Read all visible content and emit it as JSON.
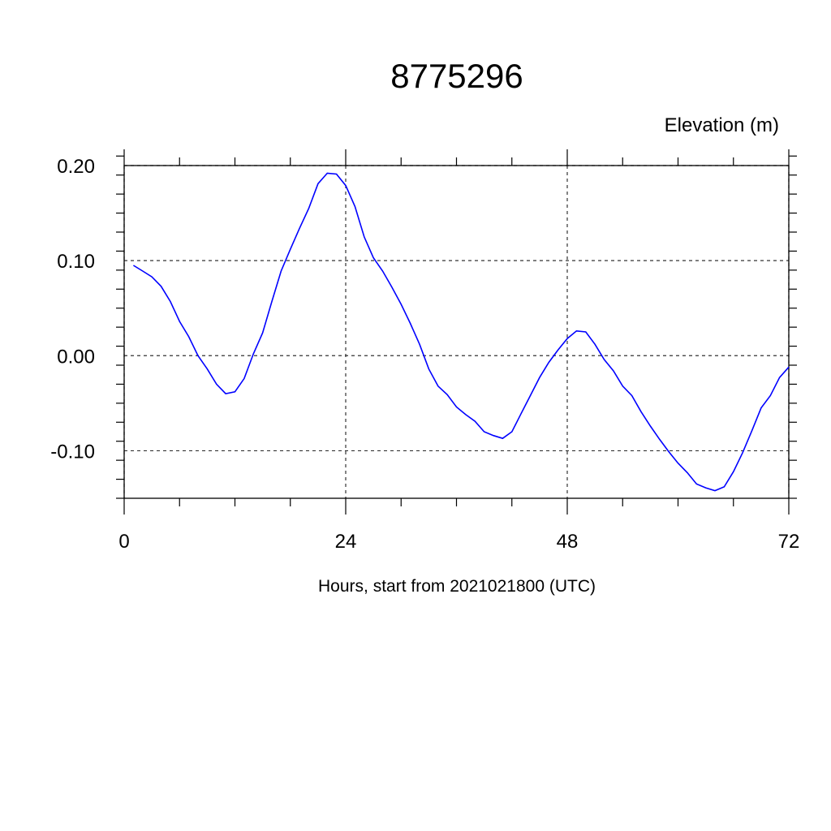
{
  "chart_data": {
    "type": "line",
    "title": "8775296",
    "ylabel": "Elevation (m)",
    "xlabel": "Hours, start from 2021021800 (UTC)",
    "xlim": [
      0,
      72
    ],
    "ylim": [
      -0.15,
      0.2
    ],
    "x_ticks": [
      0,
      24,
      48,
      72
    ],
    "x_tick_labels": [
      "0",
      "24",
      "48",
      "72"
    ],
    "x_minor_step": 6,
    "y_ticks": [
      -0.1,
      0.0,
      0.1,
      0.2
    ],
    "y_tick_labels": [
      "-0.10",
      "0.00",
      "0.10",
      "0.20"
    ],
    "y_minor_step": 0.02,
    "grid": true,
    "line_color": "#0000ff",
    "series": [
      {
        "x": [
          1,
          2,
          3,
          4,
          5,
          6,
          7,
          8,
          9,
          10,
          11,
          12,
          13,
          14,
          15,
          16,
          17,
          18,
          19,
          20,
          21,
          22,
          23,
          24,
          25,
          26,
          27,
          28,
          29,
          30,
          31,
          32,
          33,
          34,
          35,
          36,
          37,
          38,
          39,
          40,
          41,
          42,
          43,
          44,
          45,
          46,
          47,
          48,
          49,
          50,
          51,
          52,
          53,
          54,
          55,
          56,
          57,
          58,
          59,
          60,
          61,
          62,
          63,
          64,
          65,
          66,
          67,
          68,
          69,
          70,
          71,
          72
        ],
        "values": [
          0.095,
          0.089,
          0.083,
          0.073,
          0.057,
          0.036,
          0.02,
          0.0,
          -0.014,
          -0.03,
          -0.04,
          -0.038,
          -0.024,
          0.002,
          0.024,
          0.057,
          0.089,
          0.112,
          0.134,
          0.155,
          0.181,
          0.192,
          0.191,
          0.179,
          0.157,
          0.125,
          0.103,
          0.089,
          0.072,
          0.054,
          0.034,
          0.012,
          -0.014,
          -0.032,
          -0.041,
          -0.054,
          -0.062,
          -0.069,
          -0.08,
          -0.084,
          -0.087,
          -0.08,
          -0.061,
          -0.042,
          -0.023,
          -0.007,
          0.006,
          0.018,
          0.026,
          0.025,
          0.012,
          -0.004,
          -0.016,
          -0.032,
          -0.042,
          -0.059,
          -0.074,
          -0.088,
          -0.101,
          -0.113,
          -0.123,
          -0.135,
          -0.139,
          -0.142,
          -0.138,
          -0.122,
          -0.102,
          -0.079,
          -0.055,
          -0.042,
          -0.023,
          -0.012
        ]
      }
    ]
  }
}
